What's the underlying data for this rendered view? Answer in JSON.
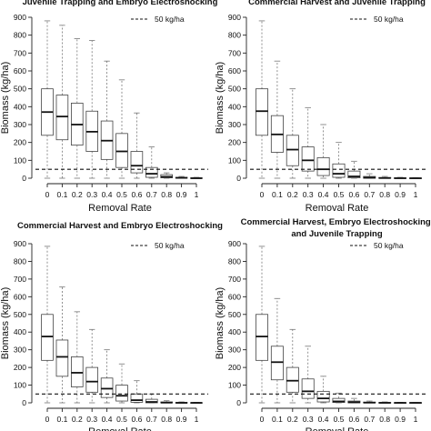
{
  "chart_data": [
    {
      "type": "boxplot",
      "title": "Juvenile Trapping and Embryo Electroshocking",
      "title_lines": [
        "Juvenile Trapping and Embryo Electroshocking"
      ],
      "xlabel": "Removal Rate",
      "ylabel": "Biomass (kg/ha)",
      "ylim": [
        0,
        900
      ],
      "yticks": [
        0,
        100,
        200,
        300,
        400,
        500,
        600,
        700,
        800,
        900
      ],
      "categories": [
        "0",
        "0.1",
        "0.2",
        "0.3",
        "0.4",
        "0.5",
        "0.6",
        "0.7",
        "0.8",
        "0.9",
        "1"
      ],
      "reference_line": {
        "value": 50,
        "label": "50 kg/ha",
        "style": "dashed"
      },
      "legend_position": "top-right",
      "boxes": [
        {
          "min": 0,
          "q1": 240,
          "median": 370,
          "q3": 500,
          "max": 880
        },
        {
          "min": 0,
          "q1": 215,
          "median": 345,
          "q3": 465,
          "max": 855
        },
        {
          "min": 0,
          "q1": 185,
          "median": 300,
          "q3": 420,
          "max": 780
        },
        {
          "min": 0,
          "q1": 150,
          "median": 260,
          "q3": 375,
          "max": 770
        },
        {
          "min": 0,
          "q1": 105,
          "median": 210,
          "q3": 320,
          "max": 655
        },
        {
          "min": 0,
          "q1": 60,
          "median": 150,
          "q3": 250,
          "max": 550
        },
        {
          "min": 0,
          "q1": 30,
          "median": 70,
          "q3": 150,
          "max": 365
        },
        {
          "min": 0,
          "q1": 5,
          "median": 25,
          "q3": 60,
          "max": 175
        },
        {
          "min": 0,
          "q1": 2,
          "median": 8,
          "q3": 20,
          "max": 30
        },
        {
          "min": 0,
          "q1": 0,
          "median": 2,
          "q3": 5,
          "max": 10
        },
        {
          "min": 0,
          "q1": 0,
          "median": 0,
          "q3": 2,
          "max": 5
        }
      ]
    },
    {
      "type": "boxplot",
      "title": "Commercial Harvest and Juvenile Trapping",
      "title_lines": [
        "Commercial Harvest and Juvenile Trapping"
      ],
      "xlabel": "Removal Rate",
      "ylabel": "Biomass (kg/ha)",
      "ylim": [
        0,
        900
      ],
      "yticks": [
        0,
        100,
        200,
        300,
        400,
        500,
        600,
        700,
        800,
        900
      ],
      "categories": [
        "0",
        "0.1",
        "0.2",
        "0.3",
        "0.4",
        "0.5",
        "0.6",
        "0.7",
        "0.8",
        "0.9",
        "1"
      ],
      "reference_line": {
        "value": 50,
        "label": "50 kg/ha",
        "style": "dashed"
      },
      "legend_position": "top-right",
      "boxes": [
        {
          "min": 0,
          "q1": 240,
          "median": 375,
          "q3": 500,
          "max": 880
        },
        {
          "min": 0,
          "q1": 145,
          "median": 245,
          "q3": 350,
          "max": 655
        },
        {
          "min": 0,
          "q1": 70,
          "median": 160,
          "q3": 240,
          "max": 500
        },
        {
          "min": 0,
          "q1": 40,
          "median": 100,
          "q3": 175,
          "max": 395
        },
        {
          "min": 0,
          "q1": 15,
          "median": 50,
          "q3": 115,
          "max": 300
        },
        {
          "min": 0,
          "q1": 5,
          "median": 25,
          "q3": 80,
          "max": 200
        },
        {
          "min": 0,
          "q1": 2,
          "median": 10,
          "q3": 40,
          "max": 95
        },
        {
          "min": 0,
          "q1": 0,
          "median": 3,
          "q3": 10,
          "max": 25
        },
        {
          "min": 0,
          "q1": 0,
          "median": 1,
          "q3": 4,
          "max": 10
        },
        {
          "min": 0,
          "q1": 0,
          "median": 0,
          "q3": 2,
          "max": 5
        },
        {
          "min": 0,
          "q1": 0,
          "median": 0,
          "q3": 1,
          "max": 3
        }
      ]
    },
    {
      "type": "boxplot",
      "title": "Commercial Harvest and Embryo Electroshocking",
      "title_lines": [
        "Commercial Harvest and Embryo Electroshocking"
      ],
      "xlabel": "Removal Rate",
      "ylabel": "Biomass (kg/ha)",
      "ylim": [
        0,
        900
      ],
      "yticks": [
        0,
        100,
        200,
        300,
        400,
        500,
        600,
        700,
        800,
        900
      ],
      "categories": [
        "0",
        "0.1",
        "0.2",
        "0.3",
        "0.4",
        "0.5",
        "0.6",
        "0.7",
        "0.8",
        "0.9",
        "1"
      ],
      "reference_line": {
        "value": 50,
        "label": "50 kg/ha",
        "style": "dashed"
      },
      "legend_position": "top-right",
      "boxes": [
        {
          "min": 0,
          "q1": 240,
          "median": 375,
          "q3": 500,
          "max": 885
        },
        {
          "min": 0,
          "q1": 150,
          "median": 260,
          "q3": 355,
          "max": 655
        },
        {
          "min": 0,
          "q1": 90,
          "median": 170,
          "q3": 260,
          "max": 515
        },
        {
          "min": 0,
          "q1": 60,
          "median": 120,
          "q3": 200,
          "max": 415
        },
        {
          "min": 0,
          "q1": 30,
          "median": 80,
          "q3": 140,
          "max": 300
        },
        {
          "min": 0,
          "q1": 10,
          "median": 40,
          "q3": 100,
          "max": 220
        },
        {
          "min": 0,
          "q1": 3,
          "median": 15,
          "q3": 50,
          "max": 125
        },
        {
          "min": 0,
          "q1": 0,
          "median": 5,
          "q3": 20,
          "max": 50
        },
        {
          "min": 0,
          "q1": 0,
          "median": 1,
          "q3": 5,
          "max": 12
        },
        {
          "min": 0,
          "q1": 0,
          "median": 0,
          "q3": 2,
          "max": 5
        },
        {
          "min": 0,
          "q1": 0,
          "median": 0,
          "q3": 1,
          "max": 3
        }
      ]
    },
    {
      "type": "boxplot",
      "title": "Commercial Harvest, Embryo Electroshocking, and Juvenile Trapping",
      "title_lines": [
        "Commercial Harvest, Embryo Electroshocking,",
        "and Juvenile Trapping"
      ],
      "xlabel": "Removal Rate",
      "ylabel": "Biomass (kg/ha)",
      "ylim": [
        0,
        900
      ],
      "yticks": [
        0,
        100,
        200,
        300,
        400,
        500,
        600,
        700,
        800,
        900
      ],
      "categories": [
        "0",
        "0.1",
        "0.2",
        "0.3",
        "0.4",
        "0.5",
        "0.6",
        "0.7",
        "0.8",
        "0.9",
        "1"
      ],
      "reference_line": {
        "value": 50,
        "label": "50 kg/ha",
        "style": "dashed"
      },
      "legend_position": "top-right",
      "boxes": [
        {
          "min": 0,
          "q1": 240,
          "median": 375,
          "q3": 500,
          "max": 885
        },
        {
          "min": 0,
          "q1": 130,
          "median": 230,
          "q3": 320,
          "max": 590
        },
        {
          "min": 0,
          "q1": 60,
          "median": 125,
          "q3": 200,
          "max": 415
        },
        {
          "min": 0,
          "q1": 25,
          "median": 65,
          "q3": 135,
          "max": 320
        },
        {
          "min": 0,
          "q1": 5,
          "median": 25,
          "q3": 65,
          "max": 150
        },
        {
          "min": 0,
          "q1": 2,
          "median": 8,
          "q3": 25,
          "max": 55
        },
        {
          "min": 0,
          "q1": 0,
          "median": 3,
          "q3": 10,
          "max": 25
        },
        {
          "min": 0,
          "q1": 0,
          "median": 1,
          "q3": 4,
          "max": 10
        },
        {
          "min": 0,
          "q1": 0,
          "median": 0,
          "q3": 2,
          "max": 5
        },
        {
          "min": 0,
          "q1": 0,
          "median": 0,
          "q3": 1,
          "max": 3
        },
        {
          "min": 0,
          "q1": 0,
          "median": 0,
          "q3": 1,
          "max": 2
        }
      ]
    }
  ]
}
